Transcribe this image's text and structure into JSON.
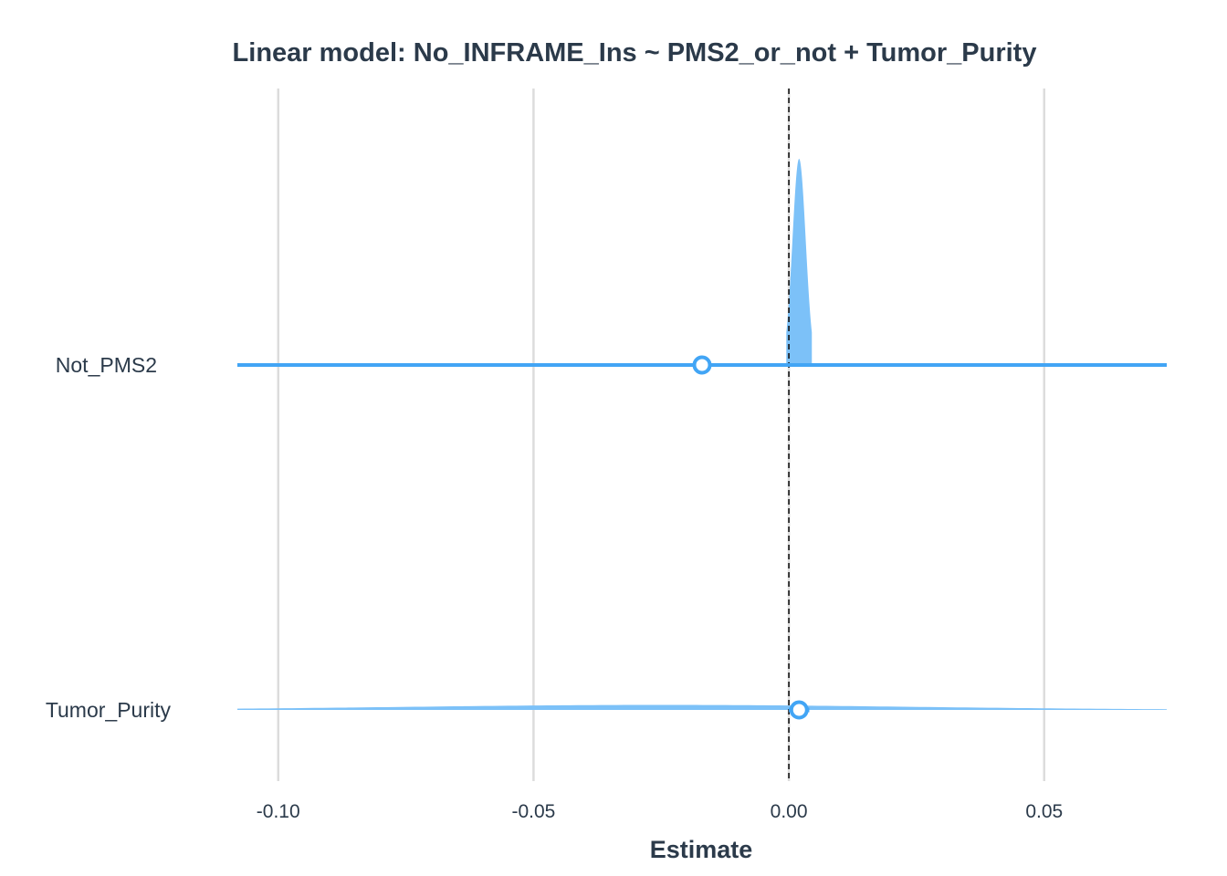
{
  "chart_data": {
    "type": "forest-density",
    "title": "Linear model: No_INFRAME_Ins ~ PMS2_or_not + Tumor_Purity",
    "xlabel": "Estimate",
    "ylabel": "",
    "xlim": [
      -0.108,
      0.074
    ],
    "x_ticks": [
      {
        "value": -0.1,
        "label": "-0.10"
      },
      {
        "value": -0.05,
        "label": "-0.05"
      },
      {
        "value": 0.0,
        "label": "0.00"
      },
      {
        "value": 0.05,
        "label": "0.05"
      }
    ],
    "reference_line": 0.0,
    "grid": "vertical",
    "terms": [
      {
        "name": "Not_PMS2",
        "estimate": -0.017,
        "ci": [
          -0.108,
          0.074
        ],
        "density": "narrow-spike",
        "density_center": 0.002,
        "density_sd": 0.0013,
        "density_clip": [
          -0.0005,
          0.0045
        ]
      },
      {
        "name": "Tumor_Purity",
        "estimate": 0.002,
        "ci": [
          0.0,
          0.004
        ],
        "density": "wide-flat",
        "density_center": -0.025,
        "density_sd": 0.05
      }
    ],
    "colors": {
      "line": "#42a5f5",
      "density": "#7cc1f8",
      "point_fill": "#ffffff",
      "grid": "#dcdcdc",
      "text": "#2b3a4a"
    }
  }
}
